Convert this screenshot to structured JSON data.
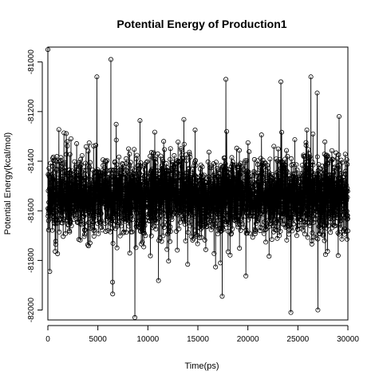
{
  "chart_data": {
    "type": "line",
    "style": "points-and-lines (black open circles joined by black lines)",
    "title": "Potential Energy of Production1",
    "xlabel": "Time(ps)",
    "ylabel": "Potential Energy(kcal/mol)",
    "xlim": [
      0,
      30000
    ],
    "ylim": [
      -82040,
      -80940
    ],
    "x_ticks": [
      0,
      5000,
      10000,
      15000,
      20000,
      25000,
      30000
    ],
    "x_tick_labels": [
      "0",
      "5000",
      "10000",
      "15000",
      "20000",
      "25000",
      "30000"
    ],
    "y_ticks": [
      -82000,
      -81800,
      -81600,
      -81400,
      -81200,
      -81000
    ],
    "y_tick_labels": [
      "-82000",
      "-81800",
      "-81600",
      "-81400",
      "-81200",
      "-81000"
    ],
    "grid": false,
    "legend": "none",
    "series_color": "#000000",
    "sampling_interval_ps": 10,
    "sample_count": 3001,
    "mean": -81540,
    "notable_points": [
      {
        "x": 0,
        "y": -80950
      },
      {
        "x": 4900,
        "y": -81060
      },
      {
        "x": 6300,
        "y": -80990
      },
      {
        "x": 8700,
        "y": -82030
      },
      {
        "x": 17800,
        "y": -81070
      },
      {
        "x": 23300,
        "y": -81080
      },
      {
        "x": 24300,
        "y": -82010
      },
      {
        "x": 26300,
        "y": -81060
      },
      {
        "x": 27000,
        "y": -82000
      }
    ]
  }
}
